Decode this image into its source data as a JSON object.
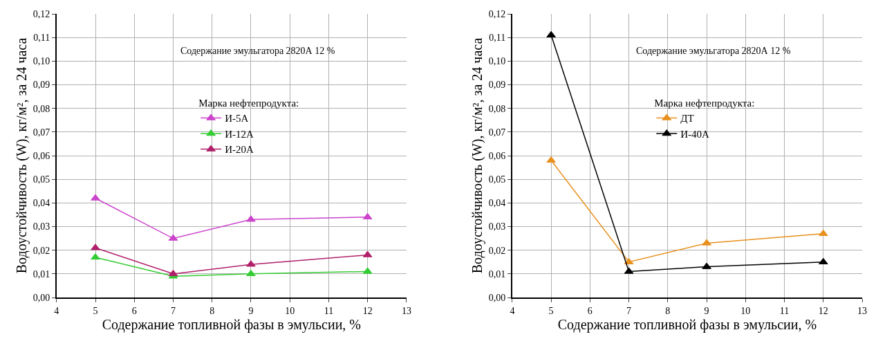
{
  "chart_data": [
    {
      "type": "line",
      "x": [
        5,
        7,
        9,
        12
      ],
      "xlabel": "Содержание топливной фазы в эмульсии, %",
      "ylabel": "Водоустойчивость (W), кг/м², за 24 часа",
      "legend_title": "Марка нефтепродукта:",
      "annotations": [
        "Содержание эмульгатора 2820А 12 %"
      ],
      "series": [
        {
          "name": "И-5А",
          "color": "#cc44cc",
          "values": [
            0.042,
            0.025,
            0.033,
            0.034
          ]
        },
        {
          "name": "И-12А",
          "color": "#33cc33",
          "values": [
            0.017,
            0.009,
            0.01,
            0.011
          ]
        },
        {
          "name": "И-20А",
          "color": "#b0206a",
          "values": [
            0.021,
            0.01,
            0.014,
            0.018
          ]
        }
      ],
      "xlim": [
        4,
        13
      ],
      "xticks": [
        4,
        5,
        6,
        7,
        8,
        9,
        10,
        11,
        12,
        13
      ],
      "ylim": [
        0,
        0.12
      ],
      "yticks": [
        {
          "value": 0,
          "label": "0,00"
        },
        {
          "value": 0.01,
          "label": "0,01"
        },
        {
          "value": 0.02,
          "label": "0,02"
        },
        {
          "value": 0.03,
          "label": "0,03"
        },
        {
          "value": 0.04,
          "label": "0,04"
        },
        {
          "value": 0.05,
          "label": "0,05"
        },
        {
          "value": 0.06,
          "label": "0,06"
        },
        {
          "value": 0.07,
          "label": "0,07"
        },
        {
          "value": 0.08,
          "label": "0,08"
        },
        {
          "value": 0.09,
          "label": "0,09"
        },
        {
          "value": 0.1,
          "label": "0,10"
        },
        {
          "value": 0.11,
          "label": "0,11"
        },
        {
          "value": 0.12,
          "label": "0,12"
        }
      ],
      "grid": true,
      "legend": "top",
      "marker": "triangle",
      "line_style": "solid"
    },
    {
      "type": "line",
      "x": [
        5,
        7,
        9,
        12
      ],
      "xlabel": "Содержание топливной фазы в эмульсии, %",
      "ylabel": "Водоустойчивость (W), кг/м², за 24 часа",
      "legend_title": "Марка нефтепродукта:",
      "annotations": [
        "Содержание эмульгатора 2820А 12 %"
      ],
      "series": [
        {
          "name": "ДТ",
          "color": "#e8901e",
          "values": [
            0.058,
            0.015,
            0.023,
            0.027
          ]
        },
        {
          "name": "И-40А",
          "color": "#000000",
          "values": [
            0.111,
            0.011,
            0.013,
            0.015
          ]
        }
      ],
      "xlim": [
        4,
        13
      ],
      "xticks": [
        4,
        5,
        6,
        7,
        8,
        9,
        10,
        11,
        12,
        13
      ],
      "ylim": [
        0,
        0.12
      ],
      "yticks": [
        {
          "value": 0,
          "label": "0,00"
        },
        {
          "value": 0.01,
          "label": "0,01"
        },
        {
          "value": 0.02,
          "label": "0,02"
        },
        {
          "value": 0.03,
          "label": "0,03"
        },
        {
          "value": 0.04,
          "label": "0,04"
        },
        {
          "value": 0.05,
          "label": "0,05"
        },
        {
          "value": 0.06,
          "label": "0,06"
        },
        {
          "value": 0.07,
          "label": "0,07"
        },
        {
          "value": 0.08,
          "label": "0,08"
        },
        {
          "value": 0.09,
          "label": "0,09"
        },
        {
          "value": 0.1,
          "label": "0,10"
        },
        {
          "value": 0.11,
          "label": "0,11"
        },
        {
          "value": 0.12,
          "label": "0,12"
        }
      ],
      "grid": true,
      "legend": "top",
      "marker": "triangle",
      "line_style": "solid"
    }
  ]
}
